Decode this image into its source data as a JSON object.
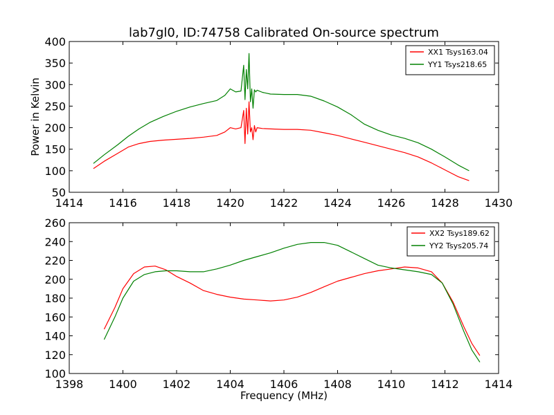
{
  "title": "lab7gl0, ID:74758 Calibrated On-source spectrum",
  "colors": {
    "red": "#ff0000",
    "green": "#008000"
  },
  "chart_data": [
    {
      "type": "line",
      "title": "lab7gl0, ID:74758 Calibrated On-source spectrum",
      "xlabel": "",
      "ylabel": "Power in Kelvin",
      "xlim": [
        1414,
        1430
      ],
      "ylim": [
        50,
        400
      ],
      "xticks": [
        1414,
        1416,
        1418,
        1420,
        1422,
        1424,
        1426,
        1428,
        1430
      ],
      "yticks": [
        50,
        100,
        150,
        200,
        250,
        300,
        350,
        400
      ],
      "grid": false,
      "legend": "top-right",
      "series": [
        {
          "name": "XX1 Tsys163.04",
          "color": "#ff0000",
          "x": [
            1414.9,
            1415.3,
            1415.8,
            1416.2,
            1416.6,
            1417.0,
            1417.5,
            1418.0,
            1418.5,
            1419.0,
            1419.5,
            1419.8,
            1420.0,
            1420.2,
            1420.4,
            1420.5,
            1420.55,
            1420.6,
            1420.65,
            1420.7,
            1420.75,
            1420.8,
            1420.85,
            1420.9,
            1420.95,
            1421.0,
            1421.2,
            1421.5,
            1422.0,
            1422.5,
            1423.0,
            1423.5,
            1424.0,
            1424.5,
            1425.0,
            1425.5,
            1426.0,
            1426.5,
            1427.0,
            1427.5,
            1428.0,
            1428.5,
            1428.9
          ],
          "y": [
            105,
            122,
            140,
            155,
            163,
            168,
            171,
            173,
            175,
            178,
            182,
            190,
            200,
            197,
            200,
            240,
            163,
            245,
            185,
            260,
            190,
            200,
            172,
            205,
            190,
            200,
            198,
            197,
            196,
            196,
            194,
            188,
            182,
            174,
            166,
            158,
            150,
            142,
            132,
            118,
            102,
            86,
            77
          ]
        },
        {
          "name": "YY1 Tsys218.65",
          "color": "#008000",
          "x": [
            1414.9,
            1415.3,
            1415.8,
            1416.2,
            1416.6,
            1417.0,
            1417.5,
            1418.0,
            1418.5,
            1419.0,
            1419.5,
            1419.8,
            1420.0,
            1420.2,
            1420.4,
            1420.5,
            1420.55,
            1420.6,
            1420.65,
            1420.7,
            1420.75,
            1420.8,
            1420.85,
            1420.9,
            1420.95,
            1421.0,
            1421.2,
            1421.5,
            1422.0,
            1422.5,
            1423.0,
            1423.5,
            1424.0,
            1424.5,
            1425.0,
            1425.5,
            1426.0,
            1426.5,
            1427.0,
            1427.5,
            1428.0,
            1428.5,
            1428.9
          ],
          "y": [
            117,
            137,
            160,
            180,
            197,
            212,
            226,
            238,
            248,
            256,
            263,
            275,
            290,
            283,
            285,
            345,
            265,
            335,
            290,
            372,
            260,
            290,
            245,
            288,
            283,
            287,
            282,
            278,
            277,
            277,
            273,
            262,
            248,
            230,
            208,
            194,
            183,
            175,
            165,
            150,
            132,
            113,
            100
          ]
        }
      ]
    },
    {
      "type": "line",
      "title": "",
      "xlabel": "Frequency (MHz)",
      "ylabel": "",
      "xlim": [
        1398,
        1414
      ],
      "ylim": [
        100,
        260
      ],
      "xticks": [
        1398,
        1400,
        1402,
        1404,
        1406,
        1408,
        1410,
        1412,
        1414
      ],
      "yticks": [
        100,
        120,
        140,
        160,
        180,
        200,
        220,
        240,
        260
      ],
      "grid": false,
      "legend": "top-right",
      "series": [
        {
          "name": "XX2 Tsys189.62",
          "color": "#ff0000",
          "x": [
            1399.3,
            1399.7,
            1400.0,
            1400.4,
            1400.8,
            1401.2,
            1401.6,
            1402.0,
            1402.5,
            1403.0,
            1403.5,
            1404.0,
            1404.5,
            1405.0,
            1405.5,
            1406.0,
            1406.5,
            1407.0,
            1407.5,
            1408.0,
            1408.5,
            1409.0,
            1409.5,
            1410.0,
            1410.5,
            1411.0,
            1411.5,
            1411.9,
            1412.3,
            1412.7,
            1413.0,
            1413.3
          ],
          "y": [
            147,
            170,
            190,
            206,
            213,
            214,
            210,
            203,
            196,
            188,
            184,
            181,
            179,
            178,
            177,
            178,
            181,
            186,
            192,
            198,
            202,
            206,
            209,
            211,
            213,
            212,
            208,
            196,
            176,
            150,
            132,
            119
          ]
        },
        {
          "name": "YY2 Tsys205.74",
          "color": "#008000",
          "x": [
            1399.3,
            1399.7,
            1400.0,
            1400.4,
            1400.8,
            1401.2,
            1401.6,
            1402.0,
            1402.5,
            1403.0,
            1403.5,
            1404.0,
            1404.5,
            1405.0,
            1405.5,
            1406.0,
            1406.5,
            1407.0,
            1407.5,
            1408.0,
            1408.5,
            1409.0,
            1409.5,
            1410.0,
            1410.5,
            1411.0,
            1411.5,
            1411.9,
            1412.3,
            1412.7,
            1413.0,
            1413.3
          ],
          "y": [
            136,
            160,
            180,
            198,
            205,
            208,
            209,
            209,
            208,
            208,
            211,
            215,
            220,
            224,
            228,
            233,
            237,
            239,
            239,
            236,
            229,
            222,
            215,
            212,
            210,
            208,
            205,
            196,
            174,
            145,
            125,
            112
          ]
        }
      ]
    }
  ]
}
